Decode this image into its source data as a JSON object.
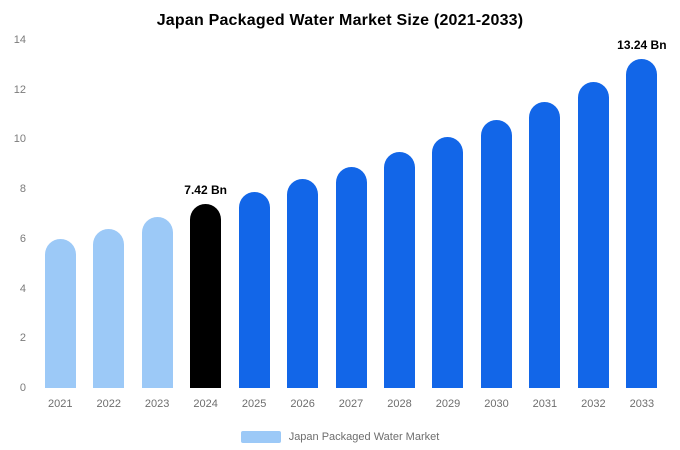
{
  "chart_data": {
    "type": "bar",
    "title": "Japan Packaged Water Market Size (2021-2033)",
    "categories": [
      "2021",
      "2022",
      "2023",
      "2024",
      "2025",
      "2026",
      "2027",
      "2028",
      "2029",
      "2030",
      "2031",
      "2032",
      "2033"
    ],
    "values": [
      6.0,
      6.4,
      6.9,
      7.42,
      7.9,
      8.4,
      8.9,
      9.5,
      10.1,
      10.8,
      11.5,
      12.3,
      13.24
    ],
    "bar_labels": [
      "",
      "",
      "",
      "7.42 Bn",
      "",
      "",
      "",
      "",
      "",
      "",
      "",
      "",
      "13.24 Bn"
    ],
    "bar_color_roles": [
      "historical",
      "historical",
      "historical",
      "highlight",
      "forecast",
      "forecast",
      "forecast",
      "forecast",
      "forecast",
      "forecast",
      "forecast",
      "forecast",
      "forecast"
    ],
    "colors": {
      "historical": "#9cc9f7",
      "highlight": "#000000",
      "forecast": "#1266e8"
    },
    "xlabel": "",
    "ylabel": "",
    "ylim": [
      0,
      14
    ],
    "yticks": [
      0,
      2,
      4,
      6,
      8,
      10,
      12,
      14
    ],
    "grid": false,
    "legend_position": "bottom",
    "legend_label": "Japan Packaged Water Market"
  }
}
